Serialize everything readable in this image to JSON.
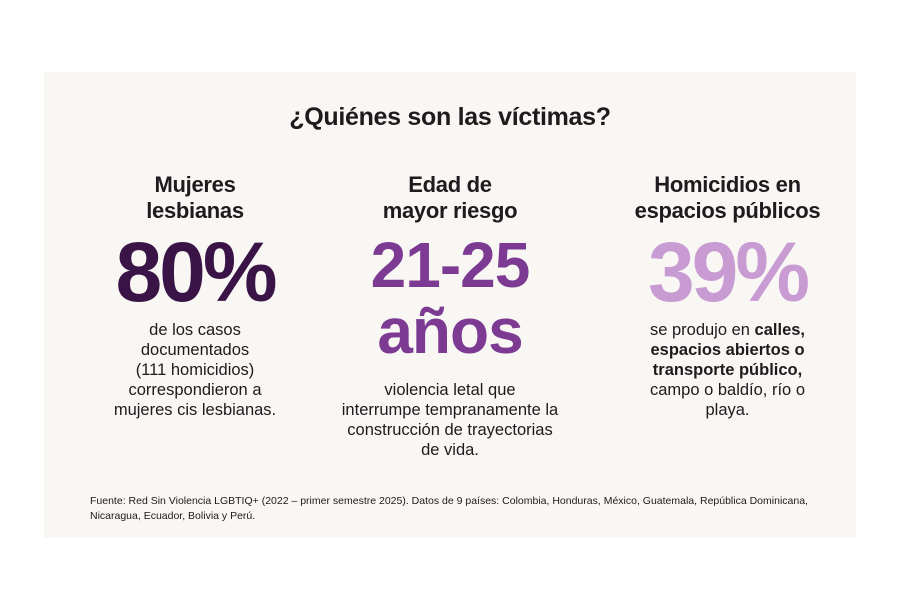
{
  "title": "¿Quiénes son las víctimas?",
  "columns": [
    {
      "heading_line1": "Mujeres",
      "heading_line2": "lesbianas",
      "value": "80%",
      "value_fraction": 0.8,
      "color": "#3a1446",
      "desc_lines": [
        "de los casos",
        "documentados",
        "(111 homicidios)",
        "correspondieron a",
        "mujeres cis lesbianas."
      ]
    },
    {
      "heading_line1": "Edad de",
      "heading_line2": "mayor riesgo",
      "value_line1": "21-25",
      "value_line2": "años",
      "color": "#7d3a93",
      "desc_lines": [
        "violencia letal que",
        "interrumpe tempranamente la",
        "construcción de trayectorias",
        "de vida."
      ]
    },
    {
      "heading_line1": "Homicidios en",
      "heading_line2": "espacios públicos",
      "value": "39%",
      "value_fraction": 0.39,
      "color": "#c89bd3",
      "desc_plain_1": "se produjo en ",
      "desc_bold_1": "calles,",
      "desc_bold_2": "espacios abiertos o",
      "desc_bold_3": "transporte público,",
      "desc_plain_2": "campo o baldío, río o",
      "desc_plain_3": "playa."
    }
  ],
  "footer_line1": "Fuente: Red Sin Violencia LGBTIQ+ (2022 – primer semestre 2025). Datos de 9 países: Colombia, Honduras, México, Guatemala, República Dominicana,",
  "footer_line2": "Nicaragua, Ecuador, Bolivia y Perú."
}
